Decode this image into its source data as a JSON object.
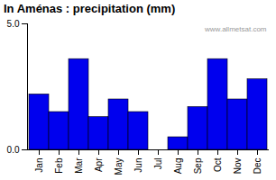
{
  "chart_data": {
    "type": "bar",
    "title": "In Aménas : precipitation (mm)",
    "categories": [
      "Jan",
      "Feb",
      "Mar",
      "Apr",
      "May",
      "Jun",
      "Jul",
      "Aug",
      "Sep",
      "Oct",
      "Nov",
      "Dec"
    ],
    "values": [
      2.2,
      1.5,
      3.6,
      1.3,
      2.0,
      1.5,
      0.0,
      0.5,
      1.7,
      3.6,
      2.0,
      2.8
    ],
    "color": "#0000EE",
    "ylim": [
      0,
      5
    ],
    "yticks": [
      0,
      5
    ],
    "grid": false,
    "annotations": [
      "www.allmetsat.com"
    ]
  }
}
